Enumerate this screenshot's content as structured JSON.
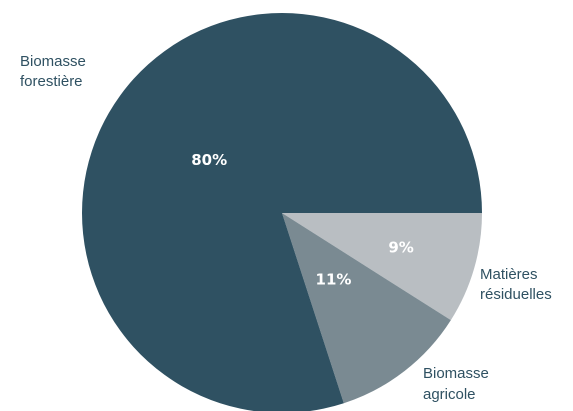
{
  "chart_data": {
    "type": "pie",
    "start_angle_deg": 0,
    "direction": "clockwise",
    "slices": [
      {
        "name": "Matières résiduelles",
        "label_lines": [
          "Matières",
          "résiduelles"
        ],
        "value": 9,
        "value_label": "9%",
        "color": "#b9bec2"
      },
      {
        "name": "Biomasse agricole",
        "label_lines": [
          "Biomasse",
          "agricole"
        ],
        "value": 11,
        "value_label": "11%",
        "color": "#7a8a92"
      },
      {
        "name": "Biomasse forestière",
        "label_lines": [
          "Biomasse",
          "forestière"
        ],
        "value": 80,
        "value_label": "80%",
        "color": "#2f5162"
      }
    ]
  }
}
